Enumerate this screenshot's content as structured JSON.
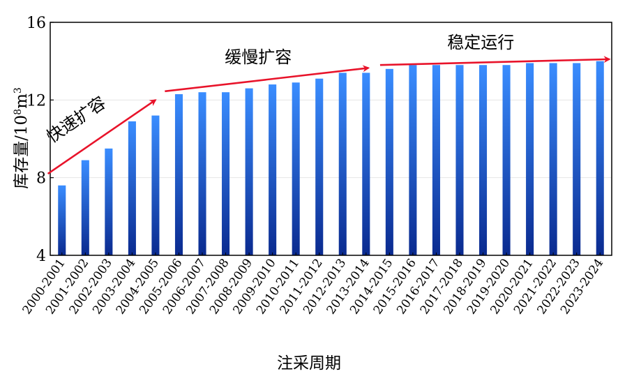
{
  "chart_data": {
    "type": "bar",
    "categories": [
      "2000-2001",
      "2001-2002",
      "2002-2003",
      "2003-2004",
      "2004-2005",
      "2005-2006",
      "2006-2007",
      "2007-2008",
      "2008-2009",
      "2009-2010",
      "2010-2011",
      "2011-2012",
      "2012-2013",
      "2013-2014",
      "2014-2015",
      "2015-2016",
      "2016-2017",
      "2017-2018",
      "2018-2019",
      "2019-2020",
      "2020-2021",
      "2021-2022",
      "2022-2023",
      "2023-2024"
    ],
    "values": [
      7.6,
      8.9,
      9.5,
      10.9,
      11.2,
      12.3,
      12.4,
      12.4,
      12.6,
      12.8,
      12.9,
      13.1,
      13.4,
      13.4,
      13.6,
      13.8,
      13.8,
      13.8,
      13.8,
      13.8,
      13.9,
      13.9,
      13.9,
      14.0
    ],
    "ylim": [
      4,
      16
    ],
    "yticks": [
      4,
      8,
      12,
      16
    ],
    "xlabel": "注采周期",
    "ylabel_main": "库存量/10",
    "ylabel_exp": "8",
    "ylabel_unit": "m",
    "ylabel_unit_exp": "3",
    "grid": true,
    "bar_color_top": "#3a8dff",
    "bar_color_bottom": "#0a2a8f",
    "arrow_color": "#e8132a",
    "annotations": [
      {
        "text": "快速扩容",
        "from_index": -0.6,
        "from_value": 8.2,
        "to_index": 4,
        "to_value": 12.0
      },
      {
        "text": "缓慢扩容",
        "from_index": 4.4,
        "from_value": 12.45,
        "to_index": 13.1,
        "to_value": 13.65
      },
      {
        "text": "稳定运行",
        "from_index": 13.6,
        "from_value": 13.8,
        "to_index": 23.4,
        "to_value": 14.1
      }
    ]
  }
}
